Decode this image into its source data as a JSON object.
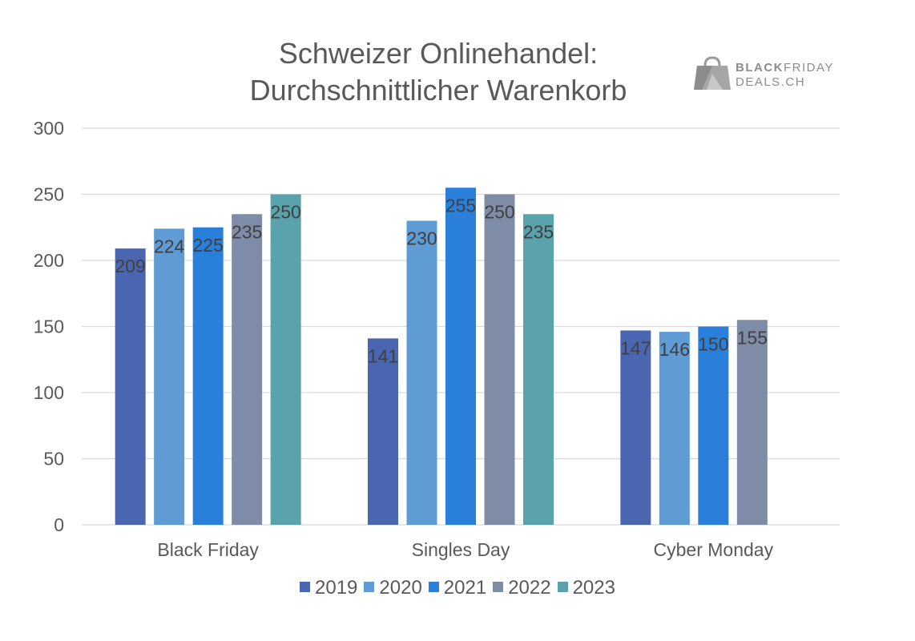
{
  "title_lines": [
    "Schweizer Onlinehandel:",
    "Durchschnittlicher Warenkorb"
  ],
  "logo": {
    "line1_bold": "BLACK",
    "line1_rest": "FRIDAY",
    "line2": "DEALS.CH",
    "icon": "shopping-bag-logo-icon"
  },
  "colors": {
    "grid": "#d9d9d9",
    "axis_text": "#595959",
    "data_label": "#404040",
    "series": [
      "#4a66b0",
      "#5f9bd4",
      "#2a7fdb",
      "#7f8ca8",
      "#5aa3ad"
    ]
  },
  "chart_data": {
    "type": "bar",
    "title": "Schweizer Onlinehandel: Durchschnittlicher Warenkorb",
    "categories": [
      "Black Friday",
      "Singles Day",
      "Cyber Monday"
    ],
    "series": [
      {
        "name": "2019",
        "values": [
          209,
          141,
          147
        ]
      },
      {
        "name": "2020",
        "values": [
          224,
          230,
          146
        ]
      },
      {
        "name": "2021",
        "values": [
          225,
          255,
          150
        ]
      },
      {
        "name": "2022",
        "values": [
          235,
          250,
          155
        ]
      },
      {
        "name": "2023",
        "values": [
          250,
          235,
          null
        ]
      }
    ],
    "ylim": [
      0,
      300
    ],
    "yticks": [
      0,
      50,
      100,
      150,
      200,
      250,
      300
    ],
    "grid": true,
    "legend_position": "bottom",
    "data_labels": true
  }
}
